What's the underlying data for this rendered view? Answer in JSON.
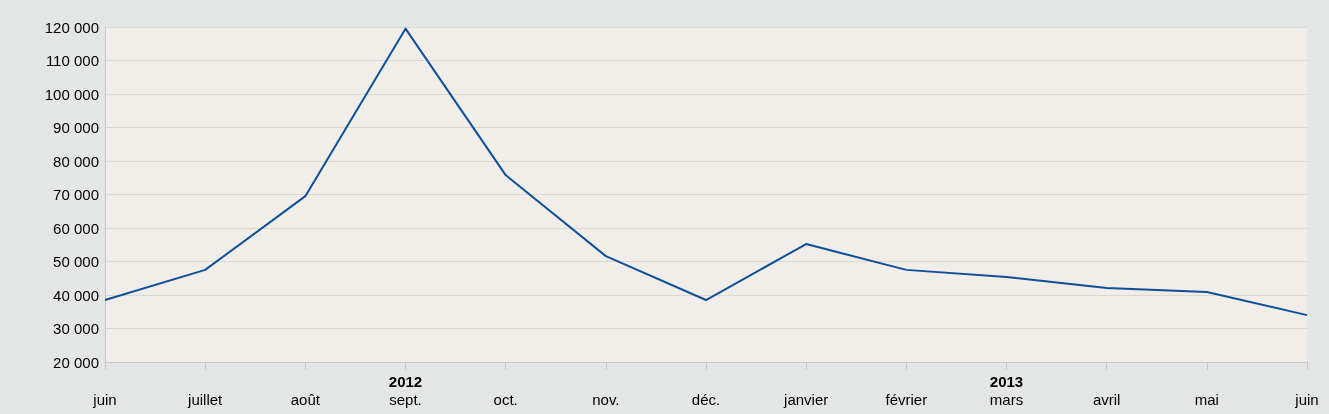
{
  "chart_data": {
    "type": "line",
    "categories": [
      "juin",
      "juillet",
      "août",
      "sept.",
      "oct.",
      "nov.",
      "déc.",
      "janvier",
      "février",
      "mars",
      "avril",
      "mai",
      "juin"
    ],
    "series": [
      {
        "color": "#0d4f98",
        "values": [
          38500,
          47500,
          69500,
          119500,
          75800,
          51600,
          38500,
          55200,
          47500,
          45400,
          42100,
          40900,
          34000
        ]
      }
    ],
    "ylim": [
      20000,
      120000
    ],
    "yticks": [
      {
        "value": 20000,
        "label": "20 000"
      },
      {
        "value": 30000,
        "label": "30 000"
      },
      {
        "value": 40000,
        "label": "40 000"
      },
      {
        "value": 50000,
        "label": "50 000"
      },
      {
        "value": 60000,
        "label": "60 000"
      },
      {
        "value": 70000,
        "label": "70 000"
      },
      {
        "value": 80000,
        "label": "80 000"
      },
      {
        "value": 90000,
        "label": "90 000"
      },
      {
        "value": 100000,
        "label": "100 000"
      },
      {
        "value": 110000,
        "label": "110 000"
      },
      {
        "value": 120000,
        "label": "120 000"
      }
    ],
    "annotations": [
      "2012",
      "2013"
    ],
    "grid": "y",
    "marker": "none",
    "line_style": "solid"
  }
}
